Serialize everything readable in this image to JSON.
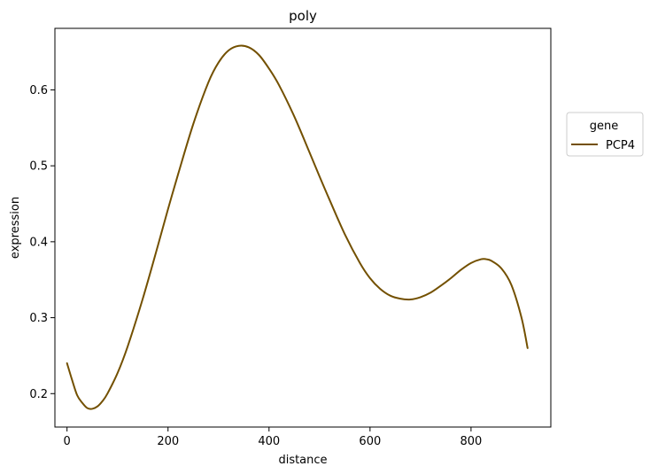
{
  "chart_data": {
    "type": "line",
    "title": "poly",
    "xlabel": "distance",
    "ylabel": "expression",
    "xlim": [
      -24,
      958
    ],
    "ylim": [
      0.156,
      0.681
    ],
    "xticks": [
      0,
      200,
      400,
      600,
      800
    ],
    "yticks": [
      0.2,
      0.3,
      0.4,
      0.5,
      0.6
    ],
    "xtick_labels": [
      "0",
      "200",
      "400",
      "600",
      "800"
    ],
    "ytick_labels": [
      "0.2",
      "0.3",
      "0.4",
      "0.5",
      "0.6"
    ],
    "grid": false,
    "legend": {
      "title": "gene",
      "placement": "outside-right"
    },
    "series": [
      {
        "name": "PCP4",
        "color": "#735000",
        "x": [
          0,
          10,
          20,
          30,
          40,
          50,
          60,
          70,
          80,
          100,
          120,
          150,
          180,
          200,
          220,
          250,
          280,
          300,
          320,
          340,
          360,
          380,
          400,
          420,
          450,
          480,
          500,
          520,
          550,
          580,
          600,
          620,
          640,
          660,
          680,
          700,
          720,
          740,
          760,
          780,
          800,
          820,
          830,
          840,
          860,
          880,
          900,
          912
        ],
        "y": [
          0.24,
          0.218,
          0.198,
          0.188,
          0.181,
          0.18,
          0.183,
          0.19,
          0.2,
          0.227,
          0.262,
          0.325,
          0.395,
          0.443,
          0.489,
          0.555,
          0.61,
          0.636,
          0.652,
          0.658,
          0.656,
          0.646,
          0.628,
          0.606,
          0.565,
          0.518,
          0.486,
          0.455,
          0.41,
          0.372,
          0.352,
          0.338,
          0.329,
          0.325,
          0.324,
          0.327,
          0.333,
          0.342,
          0.352,
          0.363,
          0.372,
          0.377,
          0.377,
          0.375,
          0.365,
          0.343,
          0.3,
          0.26
        ]
      }
    ]
  }
}
